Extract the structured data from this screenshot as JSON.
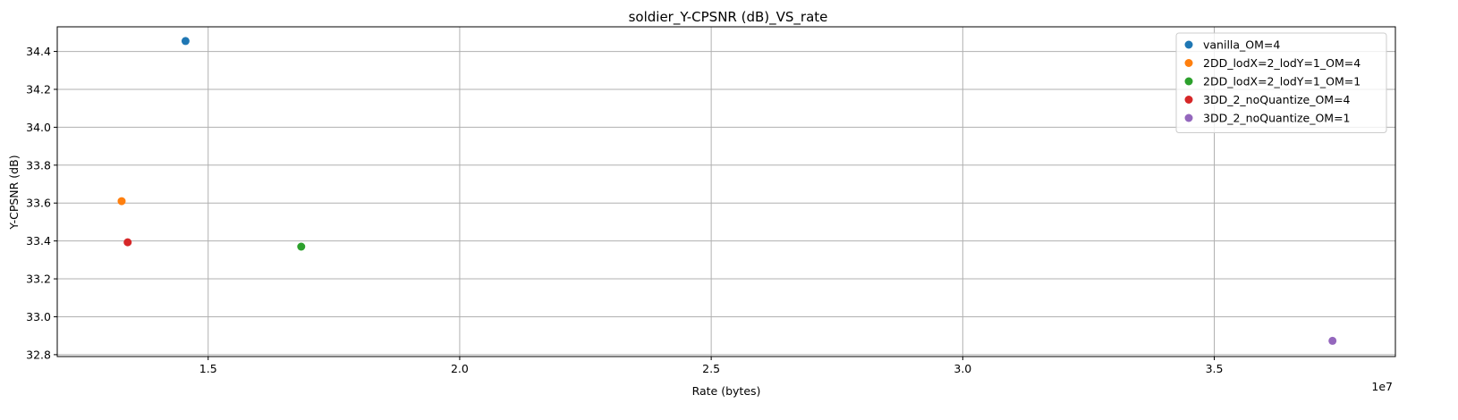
{
  "chart_data": {
    "type": "scatter",
    "title": "soldier_Y-CPSNR (dB)_VS_rate",
    "xlabel": "Rate (bytes)",
    "ylabel": "Y-CPSNR (dB)",
    "x_offset_label": "1e7",
    "x_scale": 10000000,
    "xlim": [
      1.2,
      3.86
    ],
    "ylim": [
      32.79,
      34.53
    ],
    "x_ticks": [
      1.5,
      2.0,
      2.5,
      3.0,
      3.5
    ],
    "x_tick_labels": [
      "1.5",
      "2.0",
      "2.5",
      "3.0",
      "3.5"
    ],
    "y_ticks": [
      32.8,
      33.0,
      33.2,
      33.4,
      33.6,
      33.8,
      34.0,
      34.2,
      34.4
    ],
    "y_tick_labels": [
      "32.8",
      "33.0",
      "33.2",
      "33.4",
      "33.6",
      "33.8",
      "34.0",
      "34.2",
      "34.4"
    ],
    "grid": true,
    "legend_position": "top-right",
    "series": [
      {
        "name": "vanilla_OM=4",
        "color": "#1f77b4",
        "points": [
          [
            1.455,
            34.455
          ]
        ]
      },
      {
        "name": "2DD_lodX=2_lodY=1_OM=4",
        "color": "#ff7f0e",
        "points": [
          [
            1.328,
            33.61
          ]
        ]
      },
      {
        "name": "2DD_lodX=2_lodY=1_OM=1",
        "color": "#2ca02c",
        "points": [
          [
            1.685,
            33.37
          ]
        ]
      },
      {
        "name": "3DD_2_noQuantize_OM=4",
        "color": "#d62728",
        "points": [
          [
            1.34,
            33.393
          ]
        ]
      },
      {
        "name": "3DD_2_noQuantize_OM=1",
        "color": "#9467bd",
        "points": [
          [
            3.735,
            32.873
          ]
        ]
      }
    ]
  }
}
